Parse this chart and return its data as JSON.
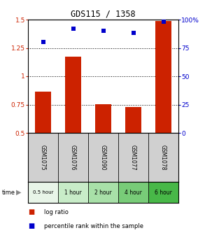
{
  "title": "GDS115 / 1358",
  "samples": [
    "GSM1075",
    "GSM1076",
    "GSM1090",
    "GSM1077",
    "GSM1078"
  ],
  "time_labels": [
    "0.5 hour",
    "1 hour",
    "2 hour",
    "4 hour",
    "6 hour"
  ],
  "log_ratios": [
    0.865,
    1.17,
    0.755,
    0.73,
    1.49
  ],
  "percentile_ranks": [
    80,
    92,
    90,
    88,
    98
  ],
  "bar_color": "#cc2200",
  "scatter_color": "#0000cc",
  "ylim_left": [
    0.5,
    1.5
  ],
  "ylim_right": [
    0,
    100
  ],
  "hlines": [
    0.75,
    1.0,
    1.25
  ],
  "time_colors": [
    "#e8f5e8",
    "#c8ecc8",
    "#a8e0a8",
    "#78cc78",
    "#48b848"
  ],
  "sample_bg_color": "#d0d0d0",
  "legend_labels": [
    "log ratio",
    "percentile rank within the sample"
  ],
  "yticks_left": [
    0.5,
    0.75,
    1.0,
    1.25,
    1.5
  ],
  "ytick_labels_left": [
    "0.5",
    "0.75",
    "1",
    "1.25",
    "1.5"
  ],
  "yticks_right": [
    0,
    25,
    50,
    75,
    100
  ],
  "ytick_labels_right": [
    "0",
    "25",
    "50",
    "75",
    "100%"
  ]
}
